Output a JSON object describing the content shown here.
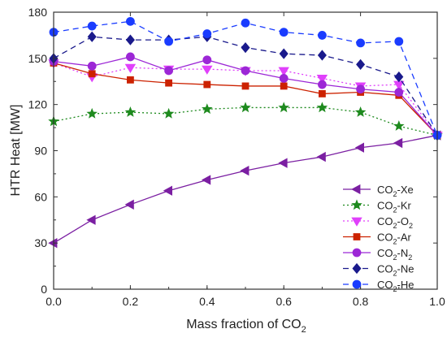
{
  "chart_data": {
    "type": "line",
    "title": "",
    "xlabel": "Mass fraction of CO",
    "xlabel_sub": "2",
    "ylabel": "HTR Heat [MW]",
    "xlim": [
      0,
      1
    ],
    "ylim": [
      0,
      180
    ],
    "xticks": [
      "0.0",
      "0.2",
      "0.4",
      "0.6",
      "0.8",
      "1.0"
    ],
    "yticks": [
      "0",
      "30",
      "60",
      "90",
      "120",
      "150",
      "180"
    ],
    "grid": false,
    "legend_position": "lower-right",
    "x": [
      0,
      0.1,
      0.2,
      0.3,
      0.4,
      0.5,
      0.6,
      0.7,
      0.8,
      0.9,
      1.0
    ],
    "series": [
      {
        "name": "CO2-Xe",
        "label_main": "CO",
        "label_sub": "2",
        "label_rest": "-Xe",
        "color": "#7b1fa2",
        "marker": "triangle-left",
        "dash": "solid",
        "values": [
          30,
          45,
          55,
          64,
          71,
          77,
          82,
          86,
          92,
          95,
          100
        ]
      },
      {
        "name": "CO2-Kr",
        "label_main": "CO",
        "label_sub": "2",
        "label_rest": "-Kr",
        "color": "#1e8a1e",
        "marker": "star",
        "dash": "dotted",
        "values": [
          109,
          114,
          115,
          114,
          117,
          118,
          118,
          118,
          115,
          106,
          100
        ]
      },
      {
        "name": "CO2-O2",
        "label_main": "CO",
        "label_sub": "2",
        "label_rest": "-O",
        "label_sub2": "2",
        "color": "#e040fb",
        "marker": "triangle-down",
        "dash": "dotted",
        "values": [
          147,
          138,
          144,
          143,
          143,
          142,
          142,
          137,
          132,
          133,
          100
        ]
      },
      {
        "name": "CO2-Ar",
        "label_main": "CO",
        "label_sub": "2",
        "label_rest": "-Ar",
        "color": "#cc2200",
        "marker": "square",
        "dash": "solid",
        "values": [
          147,
          140,
          136,
          134,
          133,
          132,
          132,
          127,
          128,
          126,
          100
        ]
      },
      {
        "name": "CO2-N2",
        "label_main": "CO",
        "label_sub": "2",
        "label_rest": "-N",
        "label_sub2": "2",
        "color": "#9c27d6",
        "marker": "circle",
        "dash": "solid",
        "values": [
          148,
          145,
          151,
          142,
          149,
          142,
          137,
          133,
          130,
          128,
          100
        ]
      },
      {
        "name": "CO2-Ne",
        "label_main": "CO",
        "label_sub": "2",
        "label_rest": "-Ne",
        "color": "#1a1a8c",
        "marker": "diamond",
        "dash": "dashed",
        "values": [
          150,
          164,
          162,
          162,
          164,
          157,
          153,
          152,
          146,
          138,
          100
        ]
      },
      {
        "name": "CO2-He",
        "label_main": "CO",
        "label_sub": "2",
        "label_rest": "-He",
        "color": "#1a3cff",
        "marker": "circle",
        "dash": "dashed",
        "values": [
          167,
          171,
          174,
          161,
          166,
          173,
          167,
          165,
          160,
          161,
          100
        ]
      }
    ]
  }
}
